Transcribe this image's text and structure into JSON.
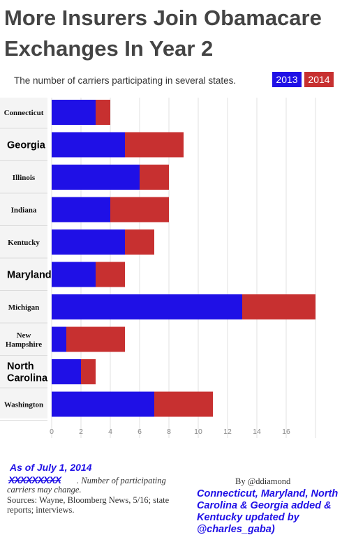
{
  "header": {
    "title": "More Insurers Join Obamacare Exchanges In Year 2",
    "subtitle": "The number of carriers participating in several states."
  },
  "chart_data": {
    "type": "bar",
    "stacked": true,
    "orientation": "horizontal",
    "title": "More Insurers Join Obamacare Exchanges In Year 2",
    "subtitle": "The number of carriers participating in several states.",
    "categories": [
      "Connecticut",
      "Georgia",
      "Illinois",
      "Indiana",
      "Kentucky",
      "Maryland",
      "Michigan",
      "New Hampshire",
      "North Carolina",
      "Washington"
    ],
    "category_label_lines": [
      [
        "Connecticut"
      ],
      [
        "Georgia"
      ],
      [
        "Illinois"
      ],
      [
        "Indiana"
      ],
      [
        "Kentucky"
      ],
      [
        "Maryland"
      ],
      [
        "Michigan"
      ],
      [
        "New",
        "Hampshire"
      ],
      [
        "North",
        "Carolina"
      ],
      [
        "Washington"
      ]
    ],
    "large_labels": [
      false,
      true,
      false,
      false,
      false,
      true,
      false,
      false,
      true,
      false
    ],
    "series": [
      {
        "name": "2013",
        "color": "#1f10e6",
        "values": [
          3,
          5,
          6,
          4,
          5,
          3,
          13,
          1,
          2,
          7
        ]
      },
      {
        "name": "2014",
        "color": "#c73030",
        "values": [
          1,
          4,
          2,
          4,
          2,
          2,
          5,
          4,
          1,
          4
        ]
      }
    ],
    "xlim": [
      0,
      18
    ],
    "xticks": [
      "0",
      "2",
      "4",
      "6",
      "8",
      "10",
      "12",
      "14",
      "16"
    ],
    "grid": true,
    "legend": "top-right"
  },
  "footer": {
    "as_of": "As of July 1, 2014",
    "struck_text": "XXXXXXXXX",
    "note": ". Number of participating carriers may change.",
    "sources": "Sources: Wayne, Bloomberg News, 5/16; state reports; interviews.",
    "byline": "By @ddiamond",
    "update_note": "Connecticut, Maryland, North Carolina & Georgia added & Kentucky updated by @charles_gaba)"
  }
}
